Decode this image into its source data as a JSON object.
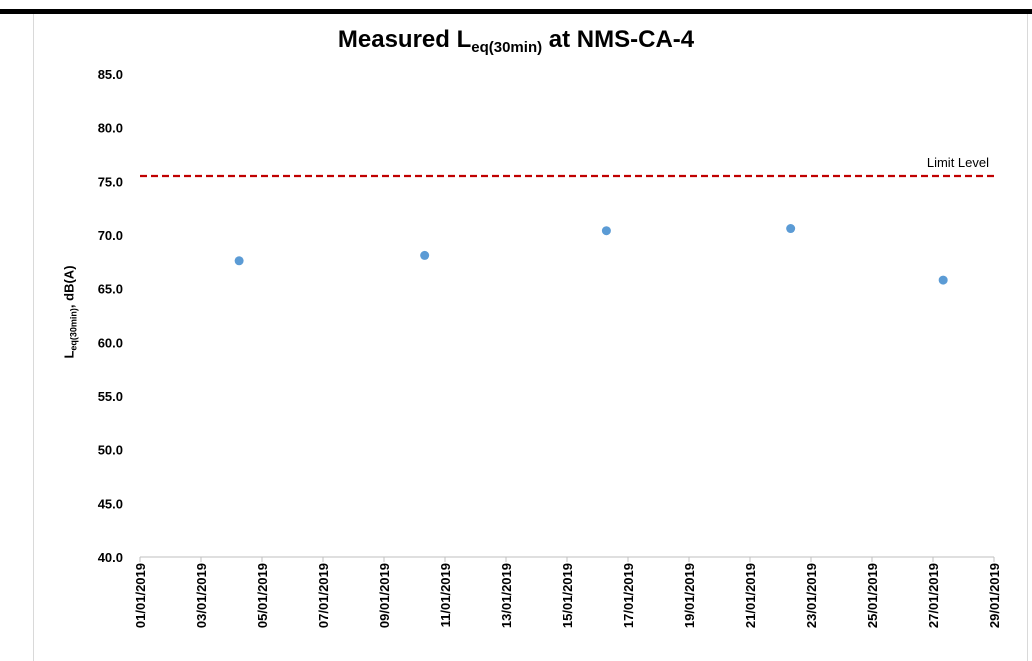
{
  "chart_data": {
    "type": "scatter",
    "title_parts": {
      "pre": "Measured L",
      "sub": "eq(30min)",
      "post": " at NMS-CA-4"
    },
    "ylabel_parts": {
      "pre": "L",
      "sub": "eq(30min)",
      "post": ", dB(A)"
    },
    "xlabel": "",
    "ylim": [
      40.0,
      85.0
    ],
    "y_ticks": [
      "40.0",
      "45.0",
      "50.0",
      "55.0",
      "60.0",
      "65.0",
      "70.0",
      "75.0",
      "80.0",
      "85.0"
    ],
    "x_ticks": [
      "01/01/2019",
      "03/01/2019",
      "05/01/2019",
      "07/01/2019",
      "09/01/2019",
      "11/01/2019",
      "13/01/2019",
      "15/01/2019",
      "17/01/2019",
      "19/01/2019",
      "21/01/2019",
      "23/01/2019",
      "25/01/2019",
      "27/01/2019",
      "29/01/2019"
    ],
    "xlim": [
      "01/01/2019",
      "29/01/2019"
    ],
    "grid": false,
    "series": [
      {
        "points": [
          {
            "x": "04/01/2019 06:00",
            "y": 67.6
          },
          {
            "x": "10/01/2019 08:00",
            "y": 68.1
          },
          {
            "x": "16/01/2019 07:00",
            "y": 70.4
          },
          {
            "x": "22/01/2019 08:00",
            "y": 70.6
          },
          {
            "x": "27/01/2019 08:00",
            "y": 65.8
          }
        ],
        "color": "#5b9bd5"
      }
    ],
    "limit_line": {
      "label": "Limit Level",
      "value": 75.5,
      "color": "#c00000"
    }
  }
}
